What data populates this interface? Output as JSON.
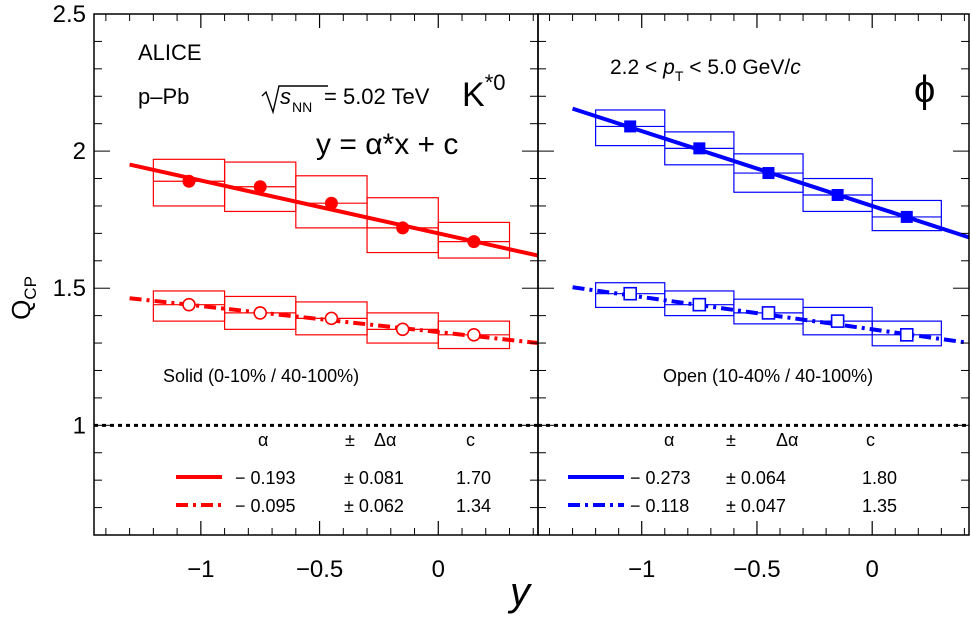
{
  "chart_data": [
    {
      "type": "scatter",
      "panel": "left",
      "particle": "K*0",
      "experiment": "ALICE",
      "system": "p–Pb",
      "energy": "= 5.02 TeV",
      "equation": "y = α*x + c",
      "class_note": "Solid (0-10% / 40-100%)",
      "xlabel": "y",
      "ylabel": "Q_CP",
      "xlim": [
        -1.45,
        0.42
      ],
      "ylim": [
        0.6,
        2.5
      ],
      "color": "#ff0000",
      "x_ticks": [
        -1,
        -0.5,
        0
      ],
      "x_tick_labels": [
        "−1",
        "−0.5",
        "0"
      ],
      "reference_line_y": 1,
      "series": [
        {
          "marker": "filled-circle",
          "line": "solid",
          "x": [
            -1.05,
            -0.75,
            -0.45,
            -0.15,
            0.15
          ],
          "y": [
            1.89,
            1.87,
            1.81,
            1.72,
            1.67
          ],
          "sys_lo": [
            1.8,
            1.78,
            1.72,
            1.63,
            1.61
          ],
          "sys_hi": [
            1.97,
            1.96,
            1.91,
            1.83,
            1.74
          ],
          "fit": {
            "alpha": "− 0.193",
            "dalpha": "± 0.081",
            "c": "1.70",
            "a": -0.193,
            "b": 1.7
          }
        },
        {
          "marker": "open-circle",
          "line": "dash-dot",
          "x": [
            -1.05,
            -0.75,
            -0.45,
            -0.15,
            0.15
          ],
          "y": [
            1.44,
            1.41,
            1.39,
            1.35,
            1.33
          ],
          "sys_lo": [
            1.38,
            1.35,
            1.33,
            1.3,
            1.28
          ],
          "sys_hi": [
            1.49,
            1.47,
            1.45,
            1.41,
            1.38
          ],
          "fit": {
            "alpha": "− 0.095",
            "dalpha": "± 0.062",
            "c": "1.34",
            "a": -0.095,
            "b": 1.34
          }
        }
      ]
    },
    {
      "type": "scatter",
      "panel": "right",
      "particle": "ϕ",
      "pt_range": "2.2 < p_T < 5.0 GeV/c",
      "class_note": "Open (10-40% / 40-100%)",
      "xlim": [
        -1.45,
        0.42
      ],
      "ylim": [
        0.6,
        2.5
      ],
      "color": "#0000ff",
      "x_ticks": [
        -1,
        -0.5,
        0
      ],
      "x_tick_labels": [
        "−1",
        "−0.5",
        "0"
      ],
      "reference_line_y": 1,
      "series": [
        {
          "marker": "filled-square",
          "line": "solid",
          "x": [
            -1.05,
            -0.75,
            -0.45,
            -0.15,
            0.15
          ],
          "y": [
            2.09,
            2.01,
            1.92,
            1.84,
            1.76
          ],
          "sys_lo": [
            2.02,
            1.95,
            1.85,
            1.78,
            1.71
          ],
          "sys_hi": [
            2.15,
            2.07,
            1.99,
            1.9,
            1.82
          ],
          "fit": {
            "alpha": "− 0.273",
            "dalpha": "± 0.064",
            "c": "1.80",
            "a": -0.273,
            "b": 1.8
          }
        },
        {
          "marker": "open-square",
          "line": "dash-dot",
          "x": [
            -1.05,
            -0.75,
            -0.45,
            -0.15,
            0.15
          ],
          "y": [
            1.48,
            1.44,
            1.41,
            1.38,
            1.33
          ],
          "sys_lo": [
            1.43,
            1.4,
            1.37,
            1.33,
            1.29
          ],
          "sys_hi": [
            1.52,
            1.49,
            1.46,
            1.43,
            1.38
          ],
          "fit": {
            "alpha": "− 0.118",
            "dalpha": "± 0.047",
            "c": "1.35",
            "a": -0.118,
            "b": 1.35
          }
        }
      ]
    }
  ],
  "y_ticks": [
    1,
    1.5,
    2,
    2.5
  ],
  "y_tick_labels": [
    "1",
    "1.5",
    "2",
    "2.5"
  ],
  "legend_headers": {
    "alpha": "α",
    "pm": "±",
    "dalpha": "Δα",
    "c": "c"
  }
}
